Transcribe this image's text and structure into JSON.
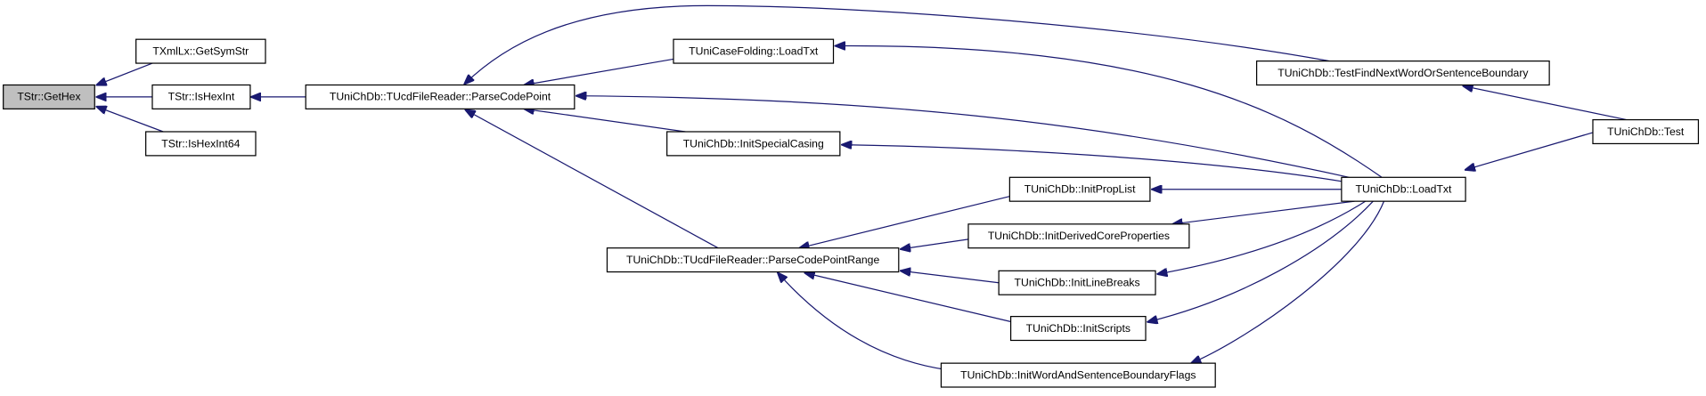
{
  "nodes": [
    {
      "label": "TStr::GetHex"
    },
    {
      "label": "TXmlLx::GetSymStr"
    },
    {
      "label": "TStr::IsHexInt"
    },
    {
      "label": "TStr::IsHexInt64"
    },
    {
      "label": "TUniChDb::TUcdFileReader::ParseCodePoint"
    },
    {
      "label": "TUniCaseFolding::LoadTxt"
    },
    {
      "label": "TUniChDb::InitSpecialCasing"
    },
    {
      "label": "TUniChDb::TUcdFileReader::ParseCodePointRange"
    },
    {
      "label": "TUniChDb::InitPropList"
    },
    {
      "label": "TUniChDb::InitDerivedCoreProperties"
    },
    {
      "label": "TUniChDb::InitLineBreaks"
    },
    {
      "label": "TUniChDb::InitScripts"
    },
    {
      "label": "TUniChDb::InitWordAndSentenceBoundaryFlags"
    },
    {
      "label": "TUniChDb::TestFindNextWordOrSentenceBoundary"
    },
    {
      "label": "TUniChDb::LoadTxt"
    },
    {
      "label": "TUniChDb::Test"
    }
  ]
}
